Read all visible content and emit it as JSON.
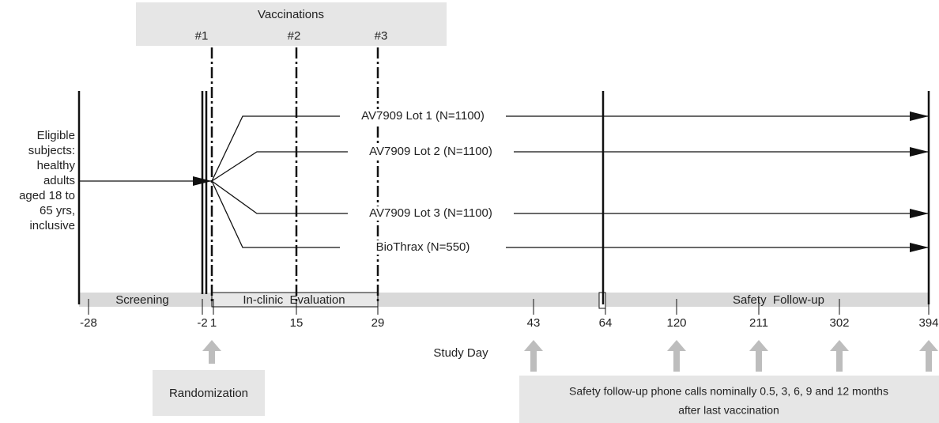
{
  "vaccinations": {
    "title": "Vaccinations",
    "doses": [
      "#1",
      "#2",
      "#3"
    ]
  },
  "eligibility": [
    "Eligible",
    "subjects:",
    "healthy",
    "adults",
    "aged 18 to",
    "65 yrs,",
    "inclusive"
  ],
  "arms": [
    "AV7909 Lot 1 (N=1100)",
    "AV7909 Lot 2 (N=1100)",
    "AV7909 Lot 3 (N=1100)",
    "BioThrax (N=550)"
  ],
  "phases": [
    "Screening",
    "In-clinic  Evaluation",
    "Safety  Follow-up"
  ],
  "study_days": [
    -28,
    -2,
    1,
    15,
    29,
    43,
    64,
    120,
    211,
    302,
    394
  ],
  "axis_label": "Study Day",
  "randomization": "Randomization",
  "phone_calls": [
    "Safety follow-up phone calls nominally 0.5, 3, 6, 9 and 12 months",
    "after last vaccination"
  ]
}
